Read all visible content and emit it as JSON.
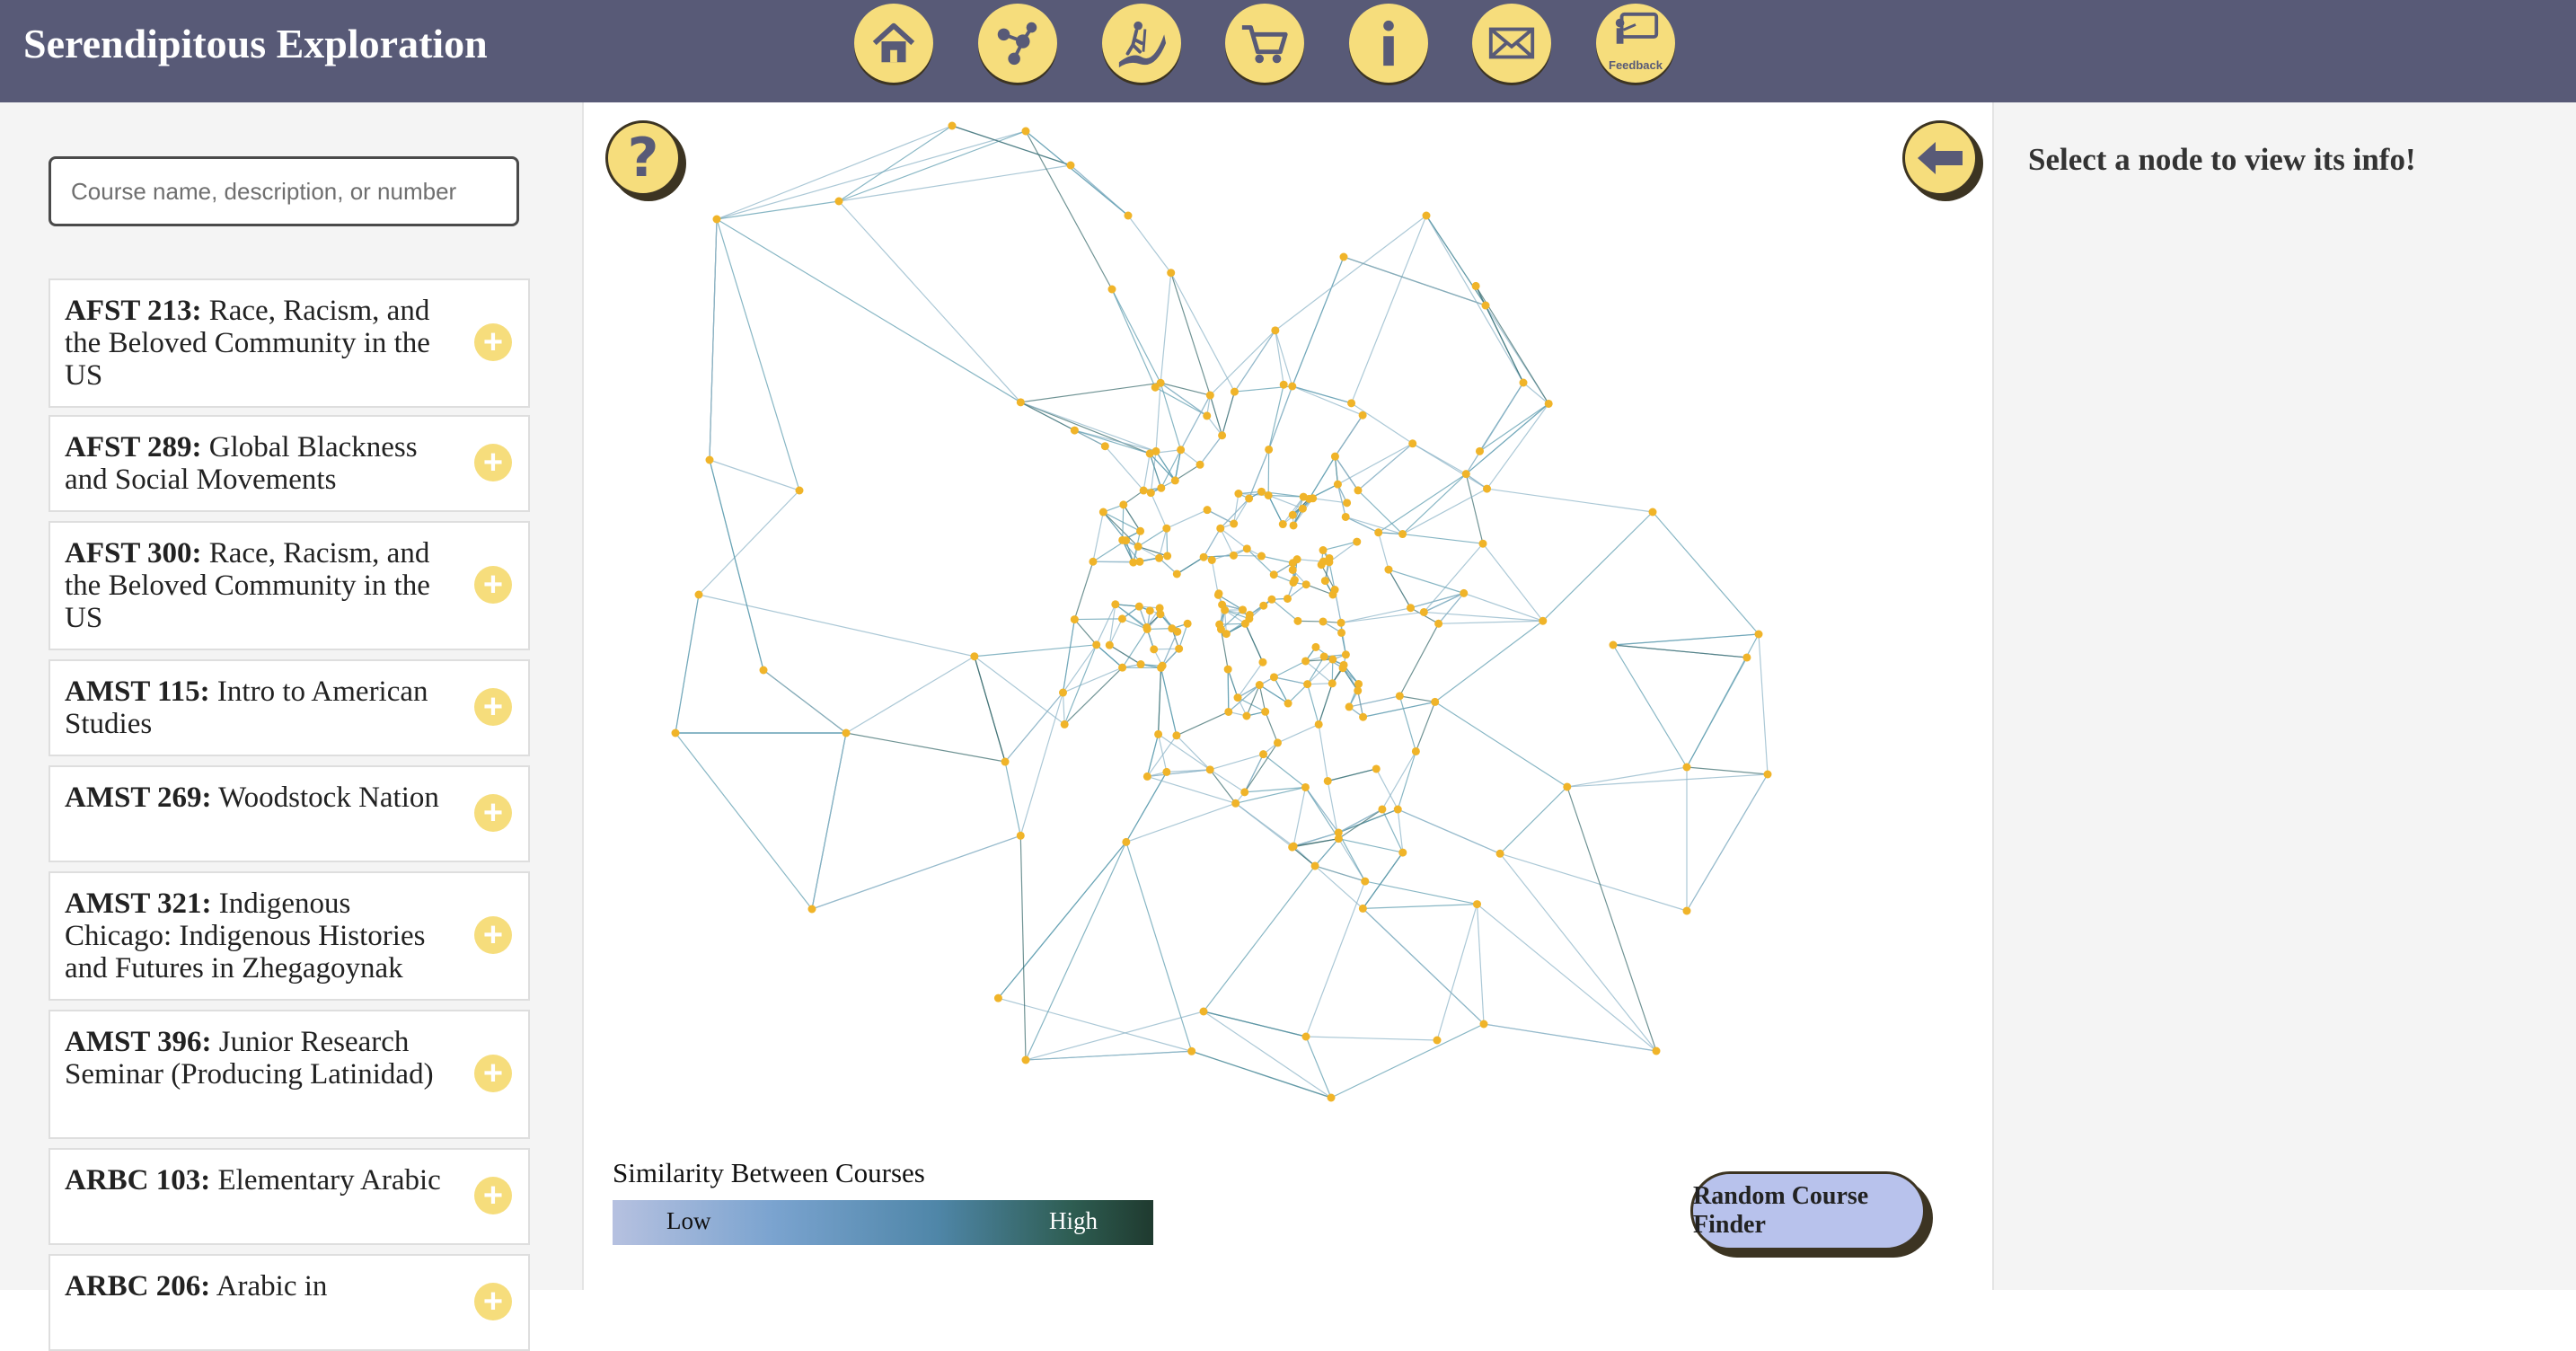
{
  "app": {
    "title": "Serendipitous Exploration"
  },
  "nav": [
    {
      "name": "home-icon"
    },
    {
      "name": "network-icon"
    },
    {
      "name": "hiking-icon"
    },
    {
      "name": "cart-icon"
    },
    {
      "name": "info-icon"
    },
    {
      "name": "mail-icon"
    },
    {
      "name": "feedback-icon",
      "label": "Feedback"
    }
  ],
  "search": {
    "placeholder": "Course name, description, or number",
    "value": ""
  },
  "courses": [
    {
      "code": "AFST 213:",
      "title": "Race, Racism, and the Beloved Community in the US"
    },
    {
      "code": "AFST 289:",
      "title": "Global Blackness and Social Movements"
    },
    {
      "code": "AFST 300:",
      "title": "Race, Racism, and the Beloved Community in the US"
    },
    {
      "code": "AMST 115:",
      "title": "Intro to American Studies"
    },
    {
      "code": "AMST 269:",
      "title": "Woodstock Nation"
    },
    {
      "code": "AMST 321:",
      "title": "Indigenous Chicago: Indigenous Histories and Futures in Zhegagoynak"
    },
    {
      "code": "AMST 396:",
      "title": "Junior Research Seminar (Producing Latinidad)"
    },
    {
      "code": "ARBC 103:",
      "title": "Elementary Arabic"
    },
    {
      "code": "ARBC 206:",
      "title": "Arabic in"
    }
  ],
  "legend": {
    "title": "Similarity Between Courses",
    "low": "Low",
    "high": "High"
  },
  "buttons": {
    "random": "Random Course Finder"
  },
  "info": {
    "prompt": "Select a node to view its info!"
  },
  "colors": {
    "header": "#585a77",
    "accent": "#f6dd7c",
    "node": "#f0b429",
    "edge": "#5f9db0",
    "random_button": "#b8c2ec"
  }
}
